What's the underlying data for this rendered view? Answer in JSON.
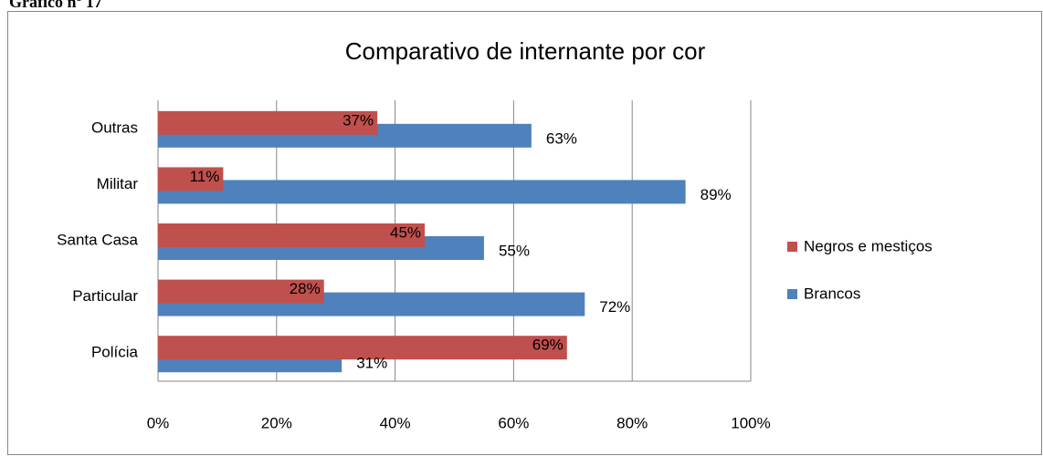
{
  "chart_data": {
    "type": "bar",
    "orientation": "horizontal",
    "caption": "Gráfico nº 17",
    "title": "Comparativo de internante por cor",
    "categories": [
      "Outras",
      "Militar",
      "Santa Casa",
      "Particular",
      "Polícia"
    ],
    "series": [
      {
        "name": "Negros e mestiços",
        "color": "#c0504d",
        "values": [
          37,
          11,
          45,
          28,
          69
        ],
        "value_labels": [
          "37%",
          "11%",
          "45%",
          "28%",
          "69%"
        ]
      },
      {
        "name": "Brancos",
        "color": "#4f81bd",
        "values": [
          63,
          89,
          55,
          72,
          31
        ],
        "value_labels": [
          "63%",
          "89%",
          "55%",
          "72%",
          "31%"
        ]
      }
    ],
    "xlim": [
      0,
      100
    ],
    "xticks": [
      {
        "value": 0,
        "label": "0%"
      },
      {
        "value": 20,
        "label": "20%"
      },
      {
        "value": 40,
        "label": "40%"
      },
      {
        "value": 60,
        "label": "60%"
      },
      {
        "value": 80,
        "label": "80%"
      },
      {
        "value": 100,
        "label": "100%"
      }
    ],
    "grid": true,
    "legend": "right"
  }
}
